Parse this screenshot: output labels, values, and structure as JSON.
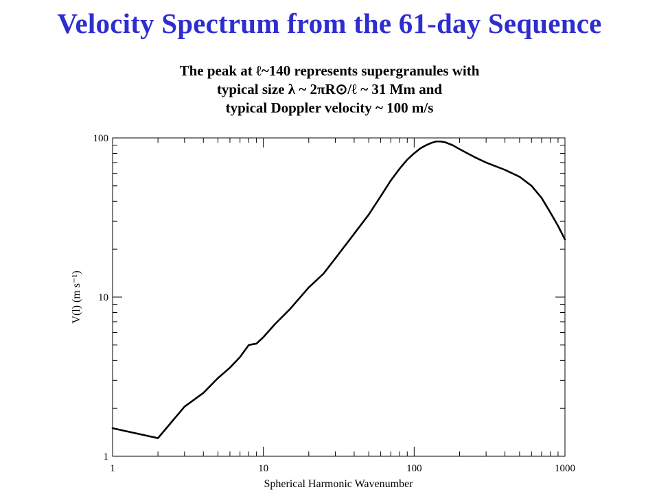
{
  "slide": {
    "title": "Velocity Spectrum from the 61-day Sequence",
    "subtitle_lines": [
      "The peak at ℓ~140 represents supergranules with",
      "typical size λ ~ 2πR⊙/ℓ ~ 31 Mm and",
      "typical Doppler velocity ~ 100 m/s"
    ]
  },
  "colors": {
    "title": "#2e2ed0",
    "text": "#000000",
    "curve": "#000000"
  },
  "chart_data": {
    "type": "line",
    "title": "",
    "xlabel": "Spherical Harmonic Wavenumber",
    "ylabel": "V(l) (m s⁻¹)",
    "xscale": "log",
    "yscale": "log",
    "xlim": [
      1,
      1000
    ],
    "ylim": [
      1,
      100
    ],
    "xticks": [
      1,
      10,
      100,
      1000
    ],
    "xtick_labels": [
      "1",
      "10",
      "100",
      "1000"
    ],
    "yticks": [
      1,
      10,
      100
    ],
    "ytick_labels": [
      "1",
      "10",
      "100"
    ],
    "grid": false,
    "series": [
      {
        "name": "",
        "x": [
          1,
          2,
          3,
          4,
          5,
          6,
          7,
          8,
          9,
          10,
          12,
          15,
          20,
          25,
          30,
          40,
          50,
          60,
          70,
          80,
          90,
          100,
          110,
          120,
          130,
          140,
          150,
          160,
          180,
          200,
          250,
          300,
          400,
          500,
          600,
          700,
          800,
          900,
          1000
        ],
        "y": [
          1.5,
          1.3,
          2.05,
          2.5,
          3.1,
          3.6,
          4.2,
          5.0,
          5.1,
          5.6,
          6.8,
          8.4,
          11.5,
          14.0,
          17.5,
          25.0,
          33.0,
          43.0,
          54.0,
          64.0,
          73.0,
          80.0,
          86.0,
          90.0,
          93.0,
          95.0,
          95.0,
          94.0,
          90.0,
          85.0,
          76.0,
          70.0,
          63.0,
          57.0,
          50.0,
          42.0,
          34.0,
          28.0,
          23.0
        ]
      }
    ]
  }
}
